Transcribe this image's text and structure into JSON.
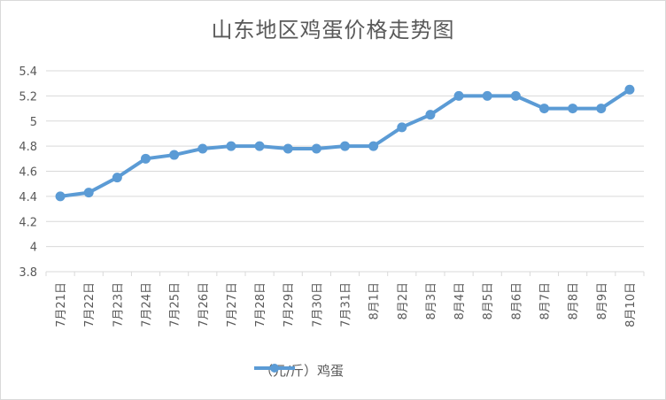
{
  "chart_data": {
    "type": "line",
    "title": "山东地区鸡蛋价格走势图",
    "xlabel": "",
    "ylabel": "",
    "categories": [
      "7月21日",
      "7月22日",
      "7月23日",
      "7月24日",
      "7月25日",
      "7月26日",
      "7月27日",
      "7月28日",
      "7月29日",
      "7月30日",
      "7月31日",
      "8月1日",
      "8月2日",
      "8月3日",
      "8月4日",
      "8月5日",
      "8月6日",
      "8月7日",
      "8月8日",
      "8月9日",
      "8月10日"
    ],
    "series": [
      {
        "name": "（元/斤）鸡蛋",
        "values": [
          4.4,
          4.43,
          4.55,
          4.7,
          4.73,
          4.78,
          4.8,
          4.8,
          4.78,
          4.78,
          4.8,
          4.8,
          4.95,
          5.05,
          5.2,
          5.2,
          5.2,
          5.1,
          5.1,
          5.1,
          5.25
        ]
      }
    ],
    "ylim": [
      3.8,
      5.4
    ],
    "yticks": [
      "3.8",
      "4",
      "4.2",
      "4.4",
      "4.6",
      "4.8",
      "5",
      "5.2",
      "5.4"
    ],
    "ytick_values": [
      3.8,
      4.0,
      4.2,
      4.4,
      4.6,
      4.8,
      5.0,
      5.2,
      5.4
    ],
    "grid": true,
    "legend": "bottom",
    "colors": {
      "line": "#5b9bd5",
      "grid": "#d9d9d9",
      "text": "#595959"
    }
  }
}
